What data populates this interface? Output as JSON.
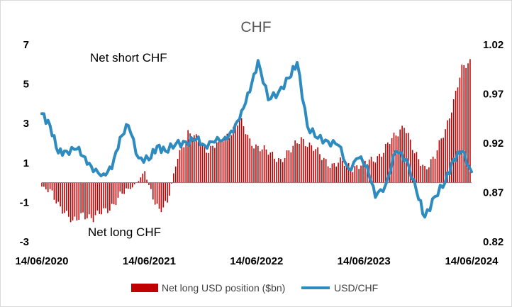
{
  "chart_data": {
    "type": "bar+line",
    "title": "CHF",
    "annotations": {
      "top": "Net short CHF",
      "bottom": "Net long CHF"
    },
    "x_tick_labels": [
      "14/06/2020",
      "14/06/2021",
      "14/06/2022",
      "14/06/2023",
      "14/06/2024"
    ],
    "left_axis": {
      "ticks": [
        "7",
        "5",
        "3",
        "1",
        "-1",
        "-3"
      ],
      "ylim": [
        -3,
        7
      ]
    },
    "right_axis": {
      "ticks": [
        "1.02",
        "0.97",
        "0.92",
        "0.87",
        "0.82"
      ],
      "ylim": [
        0.82,
        1.02
      ]
    },
    "legend": {
      "position": "bottom",
      "bar_label": "Net long USD position ($bn)",
      "line_label": "USD/CHF"
    },
    "colors": {
      "bar": "#c00000",
      "line": "#2e8bc0"
    },
    "bars_series": {
      "name": "Net long USD position ($bn)",
      "start": "2020-06-14",
      "step_weeks": 1,
      "anchors": [
        [
          "2020-06-14",
          -0.2
        ],
        [
          "2020-07-19",
          -0.6
        ],
        [
          "2020-08-23",
          -1.3
        ],
        [
          "2020-09-27",
          -2.1
        ],
        [
          "2020-11-01",
          -1.5
        ],
        [
          "2020-12-06",
          -1.9
        ],
        [
          "2021-01-10",
          -1.4
        ],
        [
          "2021-02-14",
          -1.1
        ],
        [
          "2021-03-21",
          -0.5
        ],
        [
          "2021-04-25",
          -0.1
        ],
        [
          "2021-05-30",
          0.5
        ],
        [
          "2021-06-20",
          -0.5
        ],
        [
          "2021-07-18",
          -1.3
        ],
        [
          "2021-08-15",
          -1.1
        ],
        [
          "2021-09-19",
          1.4
        ],
        [
          "2021-10-24",
          2.5
        ],
        [
          "2021-11-28",
          2.1
        ],
        [
          "2022-01-02",
          1.7
        ],
        [
          "2022-02-06",
          2.0
        ],
        [
          "2022-03-13",
          2.5
        ],
        [
          "2022-04-17",
          3.2
        ],
        [
          "2022-05-22",
          2.1
        ],
        [
          "2022-06-26",
          1.8
        ],
        [
          "2022-07-31",
          1.4
        ],
        [
          "2022-09-04",
          1.2
        ],
        [
          "2022-10-09",
          1.6
        ],
        [
          "2022-11-13",
          2.3
        ],
        [
          "2022-12-18",
          1.8
        ],
        [
          "2023-01-22",
          1.3
        ],
        [
          "2023-02-26",
          0.9
        ],
        [
          "2023-04-02",
          1.0
        ],
        [
          "2023-05-07",
          0.8
        ],
        [
          "2023-06-11",
          0.9
        ],
        [
          "2023-07-16",
          1.2
        ],
        [
          "2023-08-20",
          1.6
        ],
        [
          "2023-09-24",
          2.3
        ],
        [
          "2023-10-29",
          3.0
        ],
        [
          "2023-12-03",
          1.4
        ],
        [
          "2024-01-07",
          0.8
        ],
        [
          "2024-02-11",
          1.3
        ],
        [
          "2024-03-17",
          2.7
        ],
        [
          "2024-04-14",
          4.2
        ],
        [
          "2024-05-12",
          5.7
        ],
        [
          "2024-06-14",
          6.2
        ]
      ]
    },
    "line_series": {
      "name": "USD/CHF",
      "points": [
        [
          "2020-06-14",
          0.95
        ],
        [
          "2020-07-12",
          0.938
        ],
        [
          "2020-08-09",
          0.91
        ],
        [
          "2020-09-06",
          0.912
        ],
        [
          "2020-10-11",
          0.914
        ],
        [
          "2020-11-08",
          0.906
        ],
        [
          "2020-12-06",
          0.891
        ],
        [
          "2021-01-10",
          0.889
        ],
        [
          "2021-02-07",
          0.894
        ],
        [
          "2021-03-07",
          0.926
        ],
        [
          "2021-04-04",
          0.938
        ],
        [
          "2021-05-09",
          0.905
        ],
        [
          "2021-06-13",
          0.903
        ],
        [
          "2021-07-11",
          0.917
        ],
        [
          "2021-08-08",
          0.912
        ],
        [
          "2021-09-12",
          0.919
        ],
        [
          "2021-10-17",
          0.921
        ],
        [
          "2021-11-21",
          0.924
        ],
        [
          "2021-12-19",
          0.918
        ],
        [
          "2022-01-23",
          0.921
        ],
        [
          "2022-02-27",
          0.926
        ],
        [
          "2022-03-27",
          0.931
        ],
        [
          "2022-04-24",
          0.953
        ],
        [
          "2022-05-22",
          0.972
        ],
        [
          "2022-06-19",
          1.004
        ],
        [
          "2022-07-24",
          0.964
        ],
        [
          "2022-08-28",
          0.972
        ],
        [
          "2022-10-02",
          0.986
        ],
        [
          "2022-10-30",
          1.002
        ],
        [
          "2022-12-04",
          0.937
        ],
        [
          "2023-01-08",
          0.925
        ],
        [
          "2023-02-12",
          0.922
        ],
        [
          "2023-03-19",
          0.918
        ],
        [
          "2023-04-23",
          0.894
        ],
        [
          "2023-05-28",
          0.905
        ],
        [
          "2023-06-25",
          0.897
        ],
        [
          "2023-07-23",
          0.865
        ],
        [
          "2023-08-27",
          0.878
        ],
        [
          "2023-10-01",
          0.912
        ],
        [
          "2023-11-05",
          0.904
        ],
        [
          "2023-12-10",
          0.871
        ],
        [
          "2024-01-07",
          0.845
        ],
        [
          "2024-02-11",
          0.866
        ],
        [
          "2024-03-17",
          0.881
        ],
        [
          "2024-04-14",
          0.904
        ],
        [
          "2024-05-12",
          0.912
        ],
        [
          "2024-06-14",
          0.891
        ]
      ]
    }
  }
}
